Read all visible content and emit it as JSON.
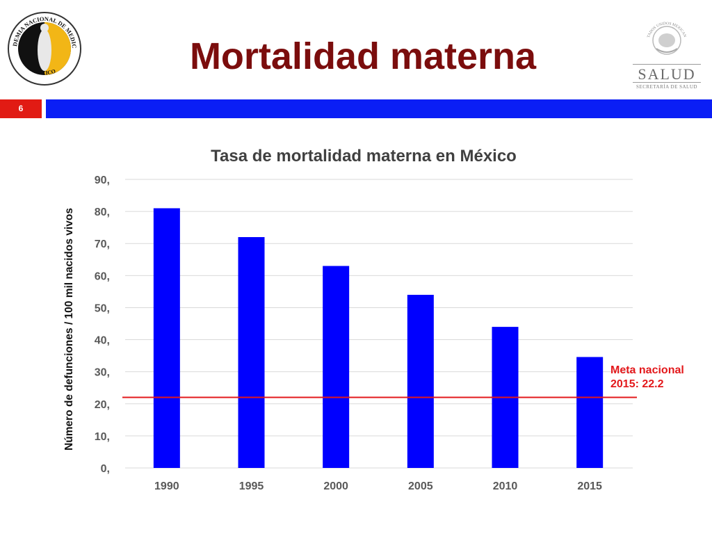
{
  "slide": {
    "title": "Mortalidad materna",
    "page_number": "6",
    "colors": {
      "title": "#7b0d0d",
      "band": "#0a1ef5",
      "badge": "#e11b14"
    }
  },
  "logos": {
    "left_ring_text": "ACADEMIA NACIONAL DE MEDICINA",
    "left_bottom_text": "MEXICO",
    "right_seal_text": "ESTADOS UNIDOS MEXICANOS",
    "right_name": "SALUD",
    "right_subname": "SECRETARÍA DE SALUD"
  },
  "chart_data": {
    "type": "bar",
    "title": "Tasa de mortalidad materna en México",
    "xlabel": "",
    "ylabel": "Número de defunciones / 100 mil nacidos vivos",
    "categories": [
      "1990",
      "1995",
      "2000",
      "2005",
      "2010",
      "2015"
    ],
    "values": [
      81,
      72,
      63,
      54,
      44,
      34.6
    ],
    "ylim": [
      0,
      90
    ],
    "yticks": [
      0,
      10,
      20,
      30,
      40,
      50,
      60,
      70,
      80,
      90
    ],
    "ytick_labels": [
      "0,",
      "10,",
      "20,",
      "30,",
      "40,",
      "50,",
      "60,",
      "70,",
      "80,",
      "90,"
    ],
    "grid": true,
    "bar_color": "#0000ff",
    "reference_line": {
      "value": 22,
      "label_line1": "Meta nacional",
      "label_line2": "2015: 22.2",
      "color": "#e3181b"
    }
  }
}
